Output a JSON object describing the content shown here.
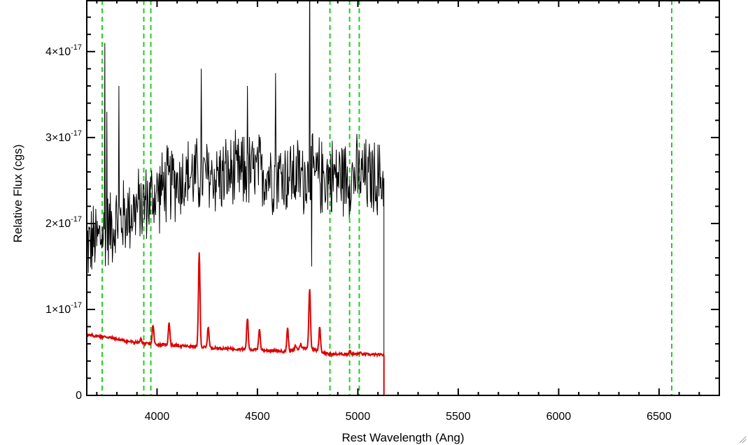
{
  "chart_data": {
    "type": "line",
    "title": "",
    "xlabel": "Rest Wavelength (Ang)",
    "ylabel": "Relative Flux (cgs)",
    "xlim": [
      3650,
      6800
    ],
    "ylim": [
      0,
      4.6e-17
    ],
    "x_ticks": [
      {
        "value": 4000,
        "label": "4000"
      },
      {
        "value": 4500,
        "label": "4500"
      },
      {
        "value": 5000,
        "label": "5000"
      },
      {
        "value": 5500,
        "label": "5500"
      },
      {
        "value": 6000,
        "label": "6000"
      },
      {
        "value": 6500,
        "label": "6500"
      }
    ],
    "y_ticks": [
      {
        "value": 0,
        "mantissa": "0",
        "exponent": ""
      },
      {
        "value": 1e-17,
        "mantissa": "1×10",
        "exponent": "-17"
      },
      {
        "value": 2e-17,
        "mantissa": "2×10",
        "exponent": "-17"
      },
      {
        "value": 3e-17,
        "mantissa": "3×10",
        "exponent": "-17"
      },
      {
        "value": 4e-17,
        "mantissa": "4×10",
        "exponent": "-17"
      }
    ],
    "grid": false,
    "reference_lines": {
      "color": "#22cc22",
      "style": "dashed",
      "x": [
        3727,
        3934,
        3969,
        4861,
        4959,
        5007,
        6563
      ]
    },
    "series": [
      {
        "color": "#000000",
        "baseline": [
          [
            3650,
            1.75e-17
          ],
          [
            3700,
            1.8e-17
          ],
          [
            3760,
            1.95e-17
          ],
          [
            3850,
            2.1e-17
          ],
          [
            3950,
            2.25e-17
          ],
          [
            4050,
            2.45e-17
          ],
          [
            4150,
            2.55e-17
          ],
          [
            4300,
            2.55e-17
          ],
          [
            4500,
            2.6e-17
          ],
          [
            4700,
            2.55e-17
          ],
          [
            4900,
            2.55e-17
          ],
          [
            5000,
            2.55e-17
          ],
          [
            5130,
            2.5e-17
          ]
        ],
        "noise_amplitude": 4.5e-18,
        "spikes": [
          [
            3740,
            4.1e-17
          ],
          [
            3750,
            3.3e-17
          ],
          [
            3810,
            3.6e-17
          ],
          [
            4220,
            3.8e-17
          ],
          [
            4450,
            3.6e-17
          ],
          [
            4590,
            3.75e-17
          ],
          [
            4760,
            5.2e-17
          ],
          [
            4770,
            1.5e-17
          ]
        ],
        "drop_to_zero_at": 5130,
        "end_x": 5130
      },
      {
        "color": "#dd0000",
        "baseline": [
          [
            3650,
            7e-18
          ],
          [
            3750,
            6.8e-18
          ],
          [
            3850,
            6.3e-18
          ],
          [
            3950,
            6e-18
          ],
          [
            4100,
            5.8e-18
          ],
          [
            4300,
            5.5e-18
          ],
          [
            4500,
            5.3e-18
          ],
          [
            4650,
            5.1e-18
          ],
          [
            4750,
            5.6e-18
          ],
          [
            4850,
            4.8e-18
          ],
          [
            5000,
            4.8e-18
          ],
          [
            5130,
            4.7e-18
          ]
        ],
        "emission_lines": [
          [
            3920,
            6.5e-18
          ],
          [
            3980,
            8.2e-18
          ],
          [
            4060,
            8.5e-18
          ],
          [
            4210,
            1.65e-17
          ],
          [
            4255,
            8e-18
          ],
          [
            4450,
            9e-18
          ],
          [
            4510,
            7.8e-18
          ],
          [
            4650,
            7.8e-18
          ],
          [
            4690,
            5.8e-18
          ],
          [
            4715,
            6e-18
          ],
          [
            4760,
            1.25e-17
          ],
          [
            4810,
            8e-18
          ],
          [
            4960,
            5.2e-18
          ],
          [
            5010,
            5e-18
          ]
        ],
        "drop_to_zero_at": 5130,
        "end_x": 6800,
        "end_y": 0
      }
    ]
  }
}
